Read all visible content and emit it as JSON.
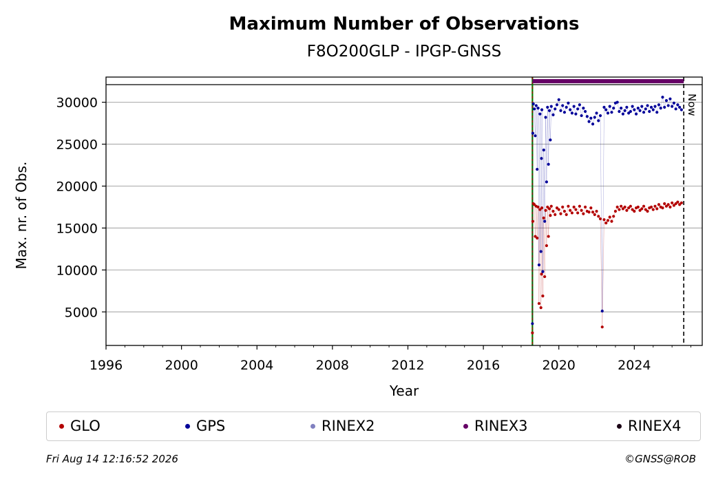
{
  "chart_data": {
    "type": "scatter",
    "title": "Maximum Number of Observations",
    "subtitle": "F8O200GLP - IPGP-GNSS",
    "xlabel": "Year",
    "ylabel": "Max. nr. of Obs.",
    "xlim": [
      1996,
      2027.6
    ],
    "ylim": [
      1000,
      33000
    ],
    "xticks": [
      1996,
      2000,
      2004,
      2008,
      2012,
      2016,
      2020,
      2024
    ],
    "yticks": [
      5000,
      10000,
      15000,
      20000,
      25000,
      30000
    ],
    "grid": "horizontal",
    "legend_position": "bottom",
    "markers": {
      "start_line_x": 2018.6,
      "now_line_x": 2026.62,
      "now_label": "Now",
      "top_band_y": 32100
    },
    "rinex_bar": {
      "name": "RINEX3",
      "x_start": 2018.6,
      "x_end": 2026.62
    },
    "series": [
      {
        "name": "GLO",
        "color": "#b30000",
        "points": [
          [
            2018.6,
            2500
          ],
          [
            2018.62,
            15800
          ],
          [
            2018.65,
            17900
          ],
          [
            2018.7,
            17800
          ],
          [
            2018.75,
            14000
          ],
          [
            2018.8,
            17600
          ],
          [
            2018.85,
            13800
          ],
          [
            2018.9,
            17500
          ],
          [
            2018.95,
            6000
          ],
          [
            2019.0,
            17200
          ],
          [
            2019.05,
            5500
          ],
          [
            2019.08,
            9500
          ],
          [
            2019.1,
            17400
          ],
          [
            2019.15,
            6900
          ],
          [
            2019.2,
            16200
          ],
          [
            2019.25,
            9200
          ],
          [
            2019.3,
            17100
          ],
          [
            2019.35,
            12900
          ],
          [
            2019.4,
            17500
          ],
          [
            2019.45,
            14000
          ],
          [
            2019.5,
            17300
          ],
          [
            2019.55,
            16500
          ],
          [
            2019.6,
            17600
          ],
          [
            2019.7,
            17000
          ],
          [
            2019.8,
            16600
          ],
          [
            2019.9,
            17400
          ],
          [
            2020.0,
            17200
          ],
          [
            2020.1,
            16700
          ],
          [
            2020.2,
            17500
          ],
          [
            2020.3,
            17000
          ],
          [
            2020.4,
            16600
          ],
          [
            2020.5,
            17600
          ],
          [
            2020.6,
            17100
          ],
          [
            2020.7,
            16800
          ],
          [
            2020.8,
            17500
          ],
          [
            2020.9,
            17200
          ],
          [
            2021.0,
            16800
          ],
          [
            2021.1,
            17600
          ],
          [
            2021.2,
            17100
          ],
          [
            2021.3,
            16700
          ],
          [
            2021.4,
            17500
          ],
          [
            2021.5,
            17000
          ],
          [
            2021.6,
            16900
          ],
          [
            2021.7,
            17400
          ],
          [
            2021.8,
            16900
          ],
          [
            2021.9,
            16600
          ],
          [
            2022.0,
            17000
          ],
          [
            2022.1,
            16400
          ],
          [
            2022.2,
            16100
          ],
          [
            2022.3,
            3200
          ],
          [
            2022.4,
            16000
          ],
          [
            2022.5,
            15600
          ],
          [
            2022.6,
            15900
          ],
          [
            2022.7,
            16300
          ],
          [
            2022.8,
            15800
          ],
          [
            2022.9,
            16400
          ],
          [
            2023.0,
            17000
          ],
          [
            2023.1,
            17500
          ],
          [
            2023.2,
            17200
          ],
          [
            2023.3,
            17600
          ],
          [
            2023.4,
            17300
          ],
          [
            2023.5,
            17500
          ],
          [
            2023.6,
            17100
          ],
          [
            2023.7,
            17400
          ],
          [
            2023.8,
            17600
          ],
          [
            2023.9,
            17200
          ],
          [
            2024.0,
            17000
          ],
          [
            2024.1,
            17400
          ],
          [
            2024.2,
            17500
          ],
          [
            2024.3,
            17100
          ],
          [
            2024.4,
            17300
          ],
          [
            2024.5,
            17600
          ],
          [
            2024.6,
            17200
          ],
          [
            2024.7,
            17000
          ],
          [
            2024.8,
            17400
          ],
          [
            2024.9,
            17500
          ],
          [
            2025.0,
            17200
          ],
          [
            2025.1,
            17600
          ],
          [
            2025.2,
            17300
          ],
          [
            2025.3,
            17800
          ],
          [
            2025.4,
            17500
          ],
          [
            2025.5,
            17400
          ],
          [
            2025.6,
            17900
          ],
          [
            2025.7,
            17600
          ],
          [
            2025.8,
            17800
          ],
          [
            2025.9,
            17500
          ],
          [
            2026.0,
            18000
          ],
          [
            2026.1,
            17700
          ],
          [
            2026.2,
            17900
          ],
          [
            2026.3,
            18100
          ],
          [
            2026.4,
            17800
          ],
          [
            2026.5,
            18000
          ]
        ]
      },
      {
        "name": "GPS",
        "color": "#000099",
        "points": [
          [
            2018.6,
            3600
          ],
          [
            2018.62,
            26300
          ],
          [
            2018.65,
            29800
          ],
          [
            2018.7,
            29200
          ],
          [
            2018.75,
            26000
          ],
          [
            2018.8,
            29600
          ],
          [
            2018.85,
            22000
          ],
          [
            2018.9,
            29300
          ],
          [
            2018.95,
            10600
          ],
          [
            2019.0,
            28600
          ],
          [
            2019.05,
            12200
          ],
          [
            2019.08,
            23300
          ],
          [
            2019.1,
            29100
          ],
          [
            2019.15,
            9800
          ],
          [
            2019.2,
            24300
          ],
          [
            2019.25,
            15800
          ],
          [
            2019.3,
            28200
          ],
          [
            2019.35,
            20500
          ],
          [
            2019.4,
            29400
          ],
          [
            2019.45,
            22600
          ],
          [
            2019.5,
            29000
          ],
          [
            2019.55,
            25500
          ],
          [
            2019.6,
            29500
          ],
          [
            2019.7,
            28500
          ],
          [
            2019.8,
            29200
          ],
          [
            2019.9,
            29700
          ],
          [
            2020.0,
            30300
          ],
          [
            2020.1,
            29000
          ],
          [
            2020.2,
            29600
          ],
          [
            2020.3,
            28800
          ],
          [
            2020.4,
            29400
          ],
          [
            2020.5,
            29900
          ],
          [
            2020.6,
            29100
          ],
          [
            2020.7,
            28700
          ],
          [
            2020.8,
            29500
          ],
          [
            2020.9,
            28600
          ],
          [
            2021.0,
            29200
          ],
          [
            2021.1,
            29700
          ],
          [
            2021.2,
            28400
          ],
          [
            2021.3,
            29300
          ],
          [
            2021.4,
            28900
          ],
          [
            2021.5,
            28300
          ],
          [
            2021.6,
            27700
          ],
          [
            2021.7,
            28100
          ],
          [
            2021.8,
            27400
          ],
          [
            2021.9,
            28200
          ],
          [
            2022.0,
            28700
          ],
          [
            2022.1,
            27800
          ],
          [
            2022.2,
            28400
          ],
          [
            2022.3,
            5100
          ],
          [
            2022.4,
            29400
          ],
          [
            2022.5,
            29100
          ],
          [
            2022.6,
            28700
          ],
          [
            2022.7,
            29500
          ],
          [
            2022.8,
            28800
          ],
          [
            2022.9,
            29300
          ],
          [
            2023.0,
            29900
          ],
          [
            2023.1,
            30000
          ],
          [
            2023.2,
            28900
          ],
          [
            2023.3,
            29300
          ],
          [
            2023.4,
            28600
          ],
          [
            2023.5,
            29000
          ],
          [
            2023.6,
            29400
          ],
          [
            2023.7,
            28700
          ],
          [
            2023.8,
            28900
          ],
          [
            2023.9,
            29500
          ],
          [
            2024.0,
            29100
          ],
          [
            2024.1,
            28600
          ],
          [
            2024.2,
            29300
          ],
          [
            2024.3,
            29000
          ],
          [
            2024.4,
            29500
          ],
          [
            2024.5,
            28800
          ],
          [
            2024.6,
            29200
          ],
          [
            2024.7,
            29600
          ],
          [
            2024.8,
            28900
          ],
          [
            2024.9,
            29400
          ],
          [
            2025.0,
            29100
          ],
          [
            2025.1,
            29500
          ],
          [
            2025.2,
            28800
          ],
          [
            2025.3,
            29700
          ],
          [
            2025.4,
            29300
          ],
          [
            2025.5,
            30600
          ],
          [
            2025.6,
            29400
          ],
          [
            2025.7,
            30200
          ],
          [
            2025.8,
            29600
          ],
          [
            2025.9,
            30400
          ],
          [
            2026.0,
            29500
          ],
          [
            2026.1,
            29900
          ],
          [
            2026.2,
            29200
          ],
          [
            2026.3,
            29700
          ],
          [
            2026.4,
            29400
          ],
          [
            2026.5,
            29100
          ]
        ]
      }
    ]
  },
  "legend": [
    {
      "label": "GLO",
      "color": "#b30000"
    },
    {
      "label": "GPS",
      "color": "#000099"
    },
    {
      "label": "RINEX2",
      "color": "#8080c0"
    },
    {
      "label": "RINEX3",
      "color": "#660066"
    },
    {
      "label": "RINEX4",
      "color": "#1a0014"
    }
  ],
  "footer": {
    "timestamp": "Fri Aug 14 12:16:52 2026",
    "credit": "©GNSS@ROB"
  }
}
